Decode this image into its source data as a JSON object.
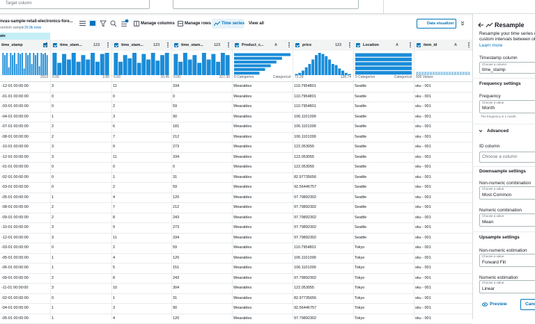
{
  "top_bar": {
    "target_placeholder": "Target column"
  },
  "toolbar": {
    "dataset_name": "nvas-sample-retail-electronics-fore...",
    "sample": "random sample",
    "rows": "20.9k rows",
    "manage_columns": "Manage columns",
    "manage_rows": "Manage rows",
    "time_series": "Time series",
    "view_all": "View all",
    "data_visualizer": "Data visualizer"
  },
  "selected_label": "ate",
  "table": {
    "columns": [
      {
        "name": "time_stamp",
        "type": ""
      },
      {
        "name": "time_stam...",
        "type": "123"
      },
      {
        "name": "time_stam...",
        "type": "123"
      },
      {
        "name": "time_stam...",
        "type": "123"
      },
      {
        "name": "Product_c...",
        "type": "A"
      },
      {
        "name": "price",
        "type": "123"
      },
      {
        "name": "Location",
        "type": "A"
      },
      {
        "name": "item_id",
        "type": "A"
      }
    ],
    "summaries": [
      {
        "left": "",
        "right": "2019",
        "bars": [
          1,
          0.9,
          1,
          0.35,
          1,
          0.9,
          1,
          0.5,
          1,
          0.95,
          1,
          0.3,
          1,
          0.9,
          1,
          0.5,
          1,
          0.9,
          1,
          0.4,
          1,
          0.95,
          1,
          0.9
        ],
        "orientation": "vertical"
      },
      {
        "left": "0.00",
        "right": "2.85",
        "bars": [
          1,
          0.55,
          0.95,
          0.7,
          1,
          0.6,
          0.9,
          0.7,
          1,
          0.6,
          0.95,
          1
        ],
        "orientation": "vertical"
      },
      {
        "left": "0.00",
        "right": "10.45",
        "bars": [
          1,
          0.6,
          0.9,
          0.75,
          1,
          0.55,
          0.95,
          0.7,
          1,
          0.65,
          0.9,
          1
        ],
        "orientation": "vertical"
      },
      {
        "left": "0.00",
        "right": "317.30",
        "bars": [
          0.95,
          0.6,
          1,
          0.7,
          0.9,
          0.55,
          1,
          0.7,
          0.95,
          0.6,
          1,
          0.9
        ],
        "orientation": "vertical"
      },
      {
        "left": "6 Categories",
        "right": "Categorical",
        "bars": [
          1,
          0.85,
          0.75,
          0.65,
          0.55,
          0.45
        ],
        "orientation": "horizontal"
      },
      {
        "left": "72.29",
        "right": "128.74",
        "bars": [
          0.05,
          0.1,
          0.2,
          0.35,
          0.5,
          0.7,
          0.9,
          1,
          0.95,
          0.85,
          0.7,
          0.5,
          0.45,
          0.3,
          0.2,
          0.1,
          0.05
        ],
        "orientation": "vertical"
      },
      {
        "left": "5 Categories",
        "right": "Categorical",
        "bars": [
          1,
          1,
          1,
          1,
          1
        ],
        "orientation": "horizontal"
      },
      {
        "left": "500 Values",
        "right": "",
        "bars": [
          0.15,
          0.15,
          0.15,
          0.15,
          0.15,
          0.15,
          0.15,
          0.15,
          0.15,
          0.15,
          0.15,
          0.15,
          0.15,
          0.15,
          0.15,
          0.15,
          0.15,
          0.15,
          0.15,
          0.15
        ],
        "orientation": "vertical"
      }
    ],
    "rows": [
      [
        "-12-01 00:00:00",
        3,
        11,
        334,
        "Wearables",
        110.7954801,
        "Seattle",
        "sku - 001"
      ],
      [
        "-01-01 00:00:00",
        0,
        0,
        0,
        "Wearables",
        110.7954801,
        "Seattle",
        "sku - 001"
      ],
      [
        "-03-01 00:00:00",
        0,
        2,
        59,
        "Wearables",
        110.7954801,
        "Seattle",
        "sku - 001"
      ],
      [
        "-04-01 00:00:00",
        1,
        3,
        90,
        "Wearables",
        106.1101399,
        "Seattle",
        "sku - 001"
      ],
      [
        "-07-01 00:00:00",
        2,
        6,
        181,
        "Wearables",
        106.1101399,
        "Seattle",
        "sku - 001"
      ],
      [
        "-08-01 00:00:00",
        2,
        7,
        212,
        "Wearables",
        106.1101399,
        "Seattle",
        "sku - 001"
      ],
      [
        "-10-01 00:00:00",
        3,
        9,
        273,
        "Wearables",
        122.053055,
        "Seattle",
        "sku - 001"
      ],
      [
        "-12-01 00:00:00",
        3,
        11,
        334,
        "Wearables",
        122.053055,
        "Seattle",
        "sku - 001"
      ],
      [
        "-01-01 00:00:00",
        0,
        0,
        0,
        "Wearables",
        122.053055,
        "Seattle",
        "sku - 001"
      ],
      [
        "-02-01 00:00:00",
        0,
        1,
        31,
        "Wearables",
        82.97735656,
        "Seattle",
        "sku - 001"
      ],
      [
        "-03-01 00:00:00",
        0,
        2,
        59,
        "Wearables",
        92.56446757,
        "Seattle",
        "sku - 001"
      ],
      [
        "-05-01 00:00:00",
        1,
        4,
        120,
        "Wearables",
        97.79892302,
        "Seattle",
        "sku - 001"
      ],
      [
        "-08-01 00:00:00",
        2,
        7,
        212,
        "Wearables",
        97.79892302,
        "Seattle",
        "sku - 001"
      ],
      [
        "-09-01 00:00:00",
        2,
        8,
        243,
        "Wearables",
        97.79892302,
        "Seattle",
        "sku - 001"
      ],
      [
        "-10-01 00:00:00",
        3,
        9,
        273,
        "Wearables",
        97.79892302,
        "Seattle",
        "sku - 001"
      ],
      [
        "-12-01 00:00:00",
        3,
        11,
        334,
        "Wearables",
        97.79892302,
        "Seattle",
        "sku - 001"
      ],
      [
        "-03-01 00:00:00",
        0,
        2,
        59,
        "Wearables",
        110.7954801,
        "Tokyo",
        "sku - 001"
      ],
      [
        "-05-01 00:00:00",
        1,
        4,
        120,
        "Wearables",
        106.1101399,
        "Tokyo",
        "sku - 001"
      ],
      [
        "-06-01 00:00:00",
        1,
        5,
        151,
        "Wearables",
        106.1101399,
        "Tokyo",
        "sku - 001"
      ],
      [
        "-09-01 00:00:00",
        2,
        8,
        243,
        "Wearables",
        97.79892302,
        "Tokyo",
        "sku - 001"
      ],
      [
        "-11-01 00:00:00",
        3,
        10,
        304,
        "Wearables",
        122.053055,
        "Tokyo",
        "sku - 001"
      ],
      [
        "-02-01 00:00:00",
        0,
        1,
        31,
        "Wearables",
        82.97735656,
        "Tokyo",
        "sku - 001"
      ],
      [
        "-04-01 00:00:00",
        1,
        3,
        90,
        "Wearables",
        92.56446757,
        "Tokyo",
        "sku - 001"
      ],
      [
        "-05-01 00:00:00",
        1,
        4,
        120,
        "Wearables",
        97.79892302,
        "Tokyo",
        "sku - 001"
      ]
    ]
  },
  "panel": {
    "title": "Resample",
    "description": [
      "Resample your time series data",
      "custom intervals between obs"
    ],
    "learn_more": "Learn more",
    "timestamp_label": "Timestamp column",
    "timestamp_hint": "Choose a column",
    "timestamp_value": "time_stamp",
    "frequency_heading": "Frequency settings",
    "frequency_label": "Frequency",
    "frequency_hint": "Choose a value",
    "frequency_value": "Month",
    "frequency_note": "The frequency is 1 month",
    "advanced": "Advanced",
    "id_label": "ID column",
    "id_hint": "Choose a column",
    "downsample_heading": "Downsample settings",
    "nonnum_comb_label": "Non-numeric combination",
    "nonnum_comb_hint": "Choose a value",
    "nonnum_comb_value": "Most Common",
    "num_comb_label": "Numeric combination",
    "num_comb_hint": "Choose a value",
    "num_comb_value": "Mean",
    "upsample_heading": "Upsample settings",
    "nonnum_est_label": "Non-numeric estimation",
    "nonnum_est_hint": "Choose a value",
    "nonnum_est_value": "Forward Fill",
    "num_est_label": "Numeric estimation",
    "num_est_hint": "Choose a value",
    "num_est_value": "Linear",
    "preview": "Preview",
    "cancel": "Cancel"
  }
}
